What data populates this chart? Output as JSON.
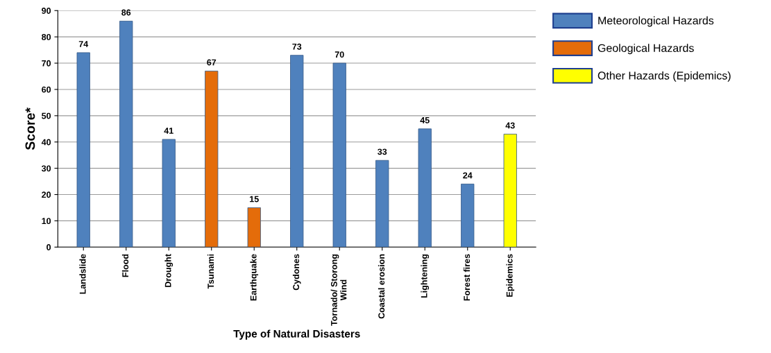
{
  "chart_data": {
    "type": "bar",
    "xlabel": "Type of Natural Disasters",
    "ylabel": "Score*",
    "categories": [
      "Landslide",
      "Flood",
      "Drought",
      "Tsunami",
      "Earthquake",
      "Cydones",
      "Tornado/ Storong\nWind",
      "Coastal erosion",
      "Lightening",
      "Forest fires",
      "Epidemics"
    ],
    "series": [
      {
        "name": "Meteorological Hazards",
        "color": "#4f81bd",
        "values": [
          74,
          86,
          41,
          null,
          null,
          73,
          70,
          33,
          45,
          24,
          null
        ]
      },
      {
        "name": "Geological Hazards",
        "color": "#e46c0a",
        "values": [
          null,
          null,
          null,
          67,
          15,
          null,
          null,
          null,
          null,
          null,
          null
        ]
      },
      {
        "name": "Other Hazards (Epidemics)",
        "color": "#ffff00",
        "values": [
          null,
          null,
          null,
          null,
          null,
          null,
          null,
          null,
          null,
          null,
          43
        ]
      }
    ],
    "ylim": [
      0,
      90
    ],
    "yticks": [
      0,
      10,
      20,
      30,
      40,
      50,
      60,
      70,
      80,
      90
    ],
    "grid": "y",
    "legend": "right",
    "data_labels": true
  }
}
